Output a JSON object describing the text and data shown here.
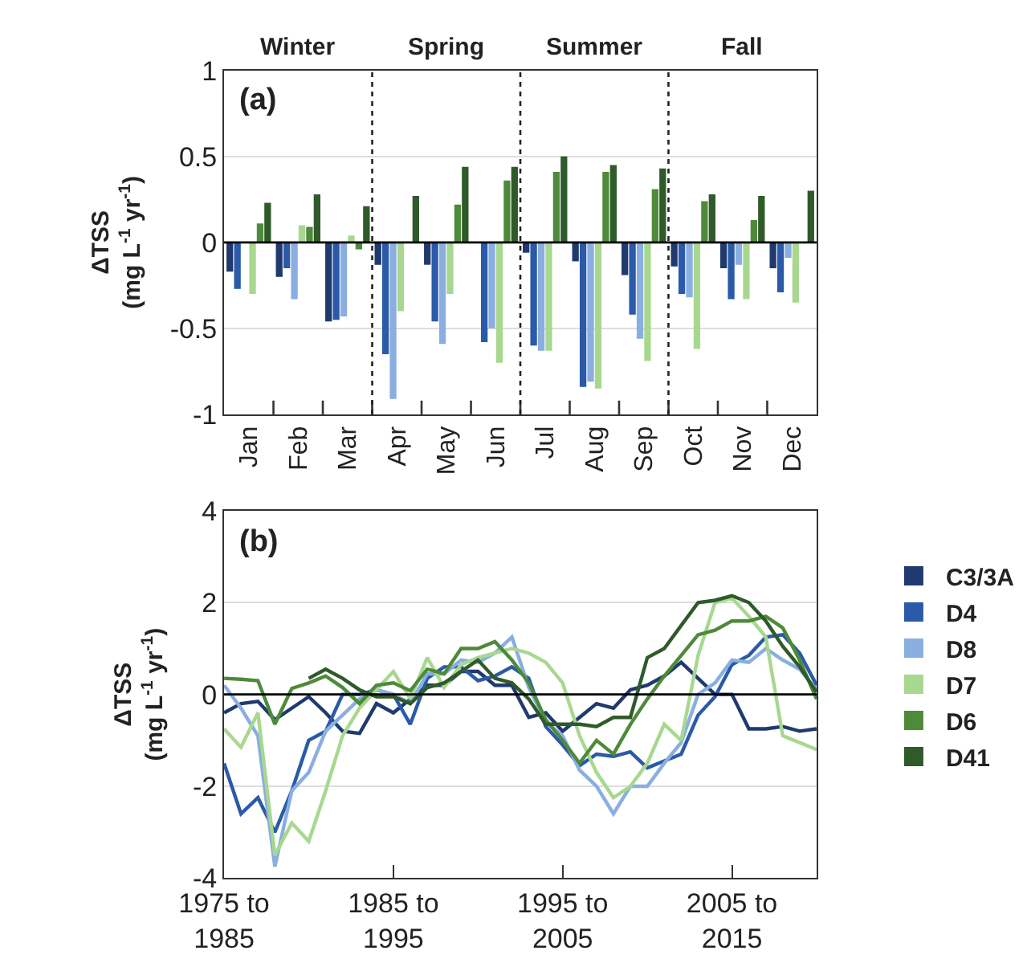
{
  "chart_data": [
    {
      "type": "bar",
      "ylabel": "ΔTSS\n(mg L$^{-1}$ yr$^{-1}$)",
      "categories": [
        "Jan",
        "Feb",
        "Mar",
        "Apr",
        "May",
        "Jun",
        "Jul",
        "Aug",
        "Sep",
        "Oct",
        "Nov",
        "Dec"
      ],
      "series": [
        {
          "name": "C3/3A",
          "color": "#1f3a6e",
          "values": [
            -0.17,
            -0.2,
            -0.46,
            -0.13,
            -0.13,
            null,
            -0.06,
            -0.11,
            -0.19,
            -0.14,
            -0.15,
            -0.15
          ]
        },
        {
          "name": "D4",
          "color": "#2a5aa8",
          "values": [
            -0.27,
            -0.15,
            -0.45,
            -0.65,
            -0.46,
            -0.58,
            -0.6,
            -0.84,
            -0.42,
            -0.3,
            -0.33,
            -0.29
          ]
        },
        {
          "name": "D8",
          "color": "#8aaee0",
          "values": [
            null,
            -0.33,
            -0.43,
            -0.91,
            -0.59,
            -0.5,
            -0.63,
            -0.81,
            -0.56,
            -0.32,
            -0.13,
            -0.09
          ]
        },
        {
          "name": "D7",
          "color": "#a8d890",
          "values": [
            -0.3,
            0.1,
            0.04,
            -0.4,
            -0.3,
            -0.7,
            -0.63,
            -0.85,
            -0.69,
            -0.62,
            -0.33,
            -0.35
          ]
        },
        {
          "name": "D6",
          "color": "#4e8a3a",
          "values": [
            0.11,
            0.09,
            -0.04,
            null,
            0.22,
            0.36,
            0.41,
            0.41,
            0.31,
            0.24,
            0.13,
            null
          ]
        },
        {
          "name": "D41",
          "color": "#2f5a2a",
          "values": [
            0.23,
            0.28,
            0.21,
            0.27,
            0.44,
            0.44,
            0.5,
            0.45,
            0.43,
            0.28,
            0.27,
            0.3
          ]
        }
      ],
      "ylim": [
        -1,
        1
      ],
      "yticks": [
        -1,
        -0.5,
        0,
        0.5,
        1
      ],
      "grid": "y",
      "legend": "right",
      "ref_lines": [
        {
          "axis": "y",
          "value": 0,
          "color": "#000000"
        }
      ],
      "annotations": [
        "(a)",
        "Winter",
        "Spring",
        "Summer",
        "Fall"
      ]
    },
    {
      "type": "line",
      "ylabel": "ΔTSS\n(mg L$^{-1}$ yr$^{-1}$)",
      "categories": [
        "1975 to\n1985",
        null,
        null,
        null,
        null,
        null,
        null,
        null,
        null,
        null,
        "1985 to\n1995",
        null,
        null,
        null,
        null,
        null,
        null,
        null,
        null,
        null,
        "1995 to\n2005",
        null,
        null,
        null,
        null,
        null,
        null,
        null,
        null,
        null,
        "2005 to\n2015",
        null,
        null,
        null,
        null,
        null
      ],
      "series": [
        {
          "color": "#1f3a6e",
          "values": [
            -0.4,
            -0.2,
            -0.15,
            -0.55,
            -0.3,
            -0.05,
            -0.4,
            -0.8,
            -0.85,
            -0.2,
            -0.4,
            -0.1,
            0.2,
            0.2,
            0.5,
            0.5,
            0.2,
            0.2,
            -0.5,
            -0.4,
            -0.8,
            -0.5,
            -0.2,
            -0.3,
            0.1,
            0.2,
            0.4,
            0.7,
            0.35,
            0,
            0,
            -0.75,
            -0.75,
            -0.7,
            -0.8,
            -0.75
          ]
        },
        {
          "color": "#2a5aa8",
          "values": [
            -1.5,
            -2.6,
            -2.25,
            -3.0,
            -2.1,
            -1.0,
            -0.8,
            0,
            0,
            0.1,
            0,
            -0.65,
            0.35,
            0.6,
            0.6,
            0.3,
            0.4,
            0.6,
            0.35,
            -0.7,
            -1.1,
            -1.55,
            -1.3,
            -1.35,
            -1.25,
            -1.6,
            -1.45,
            -1.3,
            -0.45,
            -0.05,
            0.65,
            0.85,
            1.25,
            1.3,
            0.9,
            0.2
          ]
        },
        {
          "color": "#8aaee0",
          "values": [
            0.2,
            -0.3,
            -0.9,
            -3.75,
            -2.1,
            -1.7,
            -0.8,
            -0.45,
            -0.1,
            0.1,
            0,
            -0.2,
            0.45,
            0.45,
            0.75,
            0.7,
            0.9,
            1.25,
            0.15,
            -0.6,
            -0.9,
            -1.65,
            -2.0,
            -2.6,
            -2.0,
            -2.0,
            -1.5,
            -1.05,
            0,
            0.25,
            0.75,
            0.7,
            1.0,
            0.75,
            0.55,
            0.1
          ]
        },
        {
          "color": "#a8d890",
          "values": [
            -0.75,
            -1.15,
            -0.4,
            -3.5,
            -2.8,
            -3.2,
            -2.1,
            -0.9,
            -0.3,
            0.1,
            0.5,
            -0.1,
            0.8,
            0.15,
            0.65,
            0.8,
            0.9,
            1.0,
            0.9,
            0.7,
            0.25,
            -0.9,
            -1.7,
            -2.25,
            -2.0,
            -1.5,
            -0.65,
            -1.0,
            0.85,
            2.0,
            2.1,
            1.7,
            1.25,
            -0.9,
            -1.05,
            -1.2
          ]
        },
        {
          "color": "#4e8a3a",
          "values": [
            0.35,
            0.33,
            0.3,
            -0.65,
            0.13,
            0.25,
            0.4,
            0.15,
            -0.2,
            0.2,
            0.25,
            0.08,
            0.55,
            0.45,
            1.0,
            1.0,
            1.15,
            0.75,
            0.25,
            -0.55,
            -1.0,
            -1.5,
            -1.0,
            -1.3,
            -0.65,
            -0.1,
            0.4,
            0.85,
            1.3,
            1.4,
            1.6,
            1.6,
            1.7,
            1.45,
            0.75,
            -0.1
          ]
        },
        {
          "color": "#2f5a2a",
          "values": [
            null,
            null,
            null,
            null,
            null,
            0.35,
            0.55,
            0.35,
            0.1,
            -0.05,
            -0.05,
            -0.2,
            0.15,
            0.25,
            0.5,
            0.75,
            0.35,
            0.25,
            -0.1,
            -0.65,
            -0.65,
            -0.65,
            -0.7,
            -0.5,
            -0.5,
            0.8,
            1.0,
            1.5,
            2.0,
            2.05,
            2.15,
            2.0,
            1.6,
            1.05,
            0.6,
            0.05
          ]
        }
      ],
      "ylim": [
        -4,
        4
      ],
      "yticks": [
        -4,
        -2,
        0,
        2,
        4
      ],
      "grid": "y",
      "marker": "none",
      "line_style": "solid",
      "ref_lines": [
        {
          "axis": "y",
          "value": 0,
          "color": "#000000"
        }
      ],
      "annotations": [
        "(b)"
      ]
    }
  ]
}
